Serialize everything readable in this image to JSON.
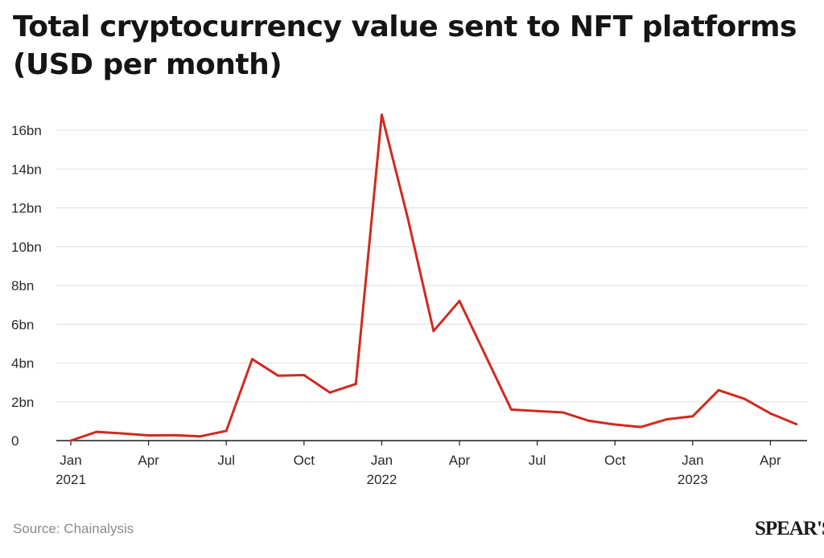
{
  "title": "Total cryptocurrency value sent to NFT platforms (USD per month)",
  "source": "Source: Chainalysis",
  "logo_text": "SPEAR'S",
  "colors": {
    "line": "#d02a1f",
    "grid": "#e2e2e2",
    "axis": "#1a1a1a",
    "text": "#2a2a2a"
  },
  "chart_data": {
    "type": "line",
    "title": "Total cryptocurrency value sent to NFT platforms (USD per month)",
    "xlabel": "",
    "ylabel": "",
    "ylim": [
      0,
      16
    ],
    "grid": true,
    "y_ticks": [
      {
        "value": 0,
        "label": "0"
      },
      {
        "value": 2,
        "label": "2bn"
      },
      {
        "value": 4,
        "label": "4bn"
      },
      {
        "value": 6,
        "label": "6bn"
      },
      {
        "value": 8,
        "label": "8bn"
      },
      {
        "value": 10,
        "label": "10bn"
      },
      {
        "value": 12,
        "label": "12bn"
      },
      {
        "value": 14,
        "label": "14bn"
      },
      {
        "value": 16,
        "label": "16bn"
      }
    ],
    "x_ticks": [
      {
        "x": "2021-01",
        "label": "Jan",
        "year": "2021"
      },
      {
        "x": "2021-04",
        "label": "Apr"
      },
      {
        "x": "2021-07",
        "label": "Jul"
      },
      {
        "x": "2021-10",
        "label": "Oct"
      },
      {
        "x": "2022-01",
        "label": "Jan",
        "year": "2022"
      },
      {
        "x": "2022-04",
        "label": "Apr"
      },
      {
        "x": "2022-07",
        "label": "Jul"
      },
      {
        "x": "2022-10",
        "label": "Oct"
      },
      {
        "x": "2023-01",
        "label": "Jan",
        "year": "2023"
      },
      {
        "x": "2023-04",
        "label": "Apr"
      }
    ],
    "x": [
      "2021-01",
      "2021-02",
      "2021-03",
      "2021-04",
      "2021-05",
      "2021-06",
      "2021-07",
      "2021-08",
      "2021-09",
      "2021-10",
      "2021-11",
      "2021-12",
      "2022-01",
      "2022-02",
      "2022-03",
      "2022-04",
      "2022-05",
      "2022-06",
      "2022-07",
      "2022-08",
      "2022-09",
      "2022-10",
      "2022-11",
      "2022-12",
      "2023-01",
      "2023-02",
      "2023-03",
      "2023-04",
      "2023-05"
    ],
    "series": [
      {
        "values": [
          0.0,
          0.45,
          0.37,
          0.27,
          0.28,
          0.22,
          0.5,
          4.2,
          3.35,
          3.38,
          2.48,
          2.92,
          16.8,
          11.5,
          5.65,
          7.2,
          4.4,
          1.6,
          1.52,
          1.45,
          1.02,
          0.83,
          0.7,
          1.1,
          1.25,
          2.6,
          2.15,
          1.4,
          0.85
        ]
      }
    ]
  }
}
